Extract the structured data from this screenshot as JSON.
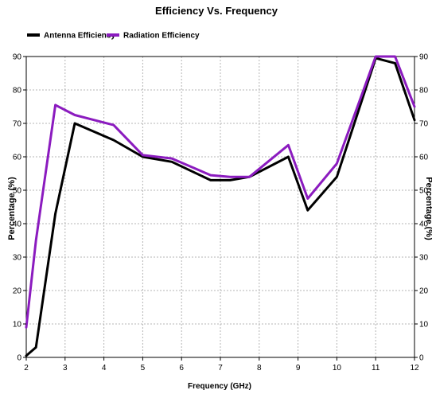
{
  "chart_data": {
    "type": "line",
    "title": "Efficiency Vs. Frequency",
    "xlabel": "Frequency (GHz)",
    "ylabel": "Percentage (%)",
    "ylabel_right": "Percentage (%)",
    "xlim": [
      2,
      12
    ],
    "ylim": [
      0,
      90
    ],
    "x_ticks": [
      "2",
      "3",
      "4",
      "5",
      "6",
      "7",
      "8",
      "9",
      "10",
      "11",
      "12"
    ],
    "y_ticks": [
      "0",
      "10",
      "20",
      "30",
      "40",
      "50",
      "60",
      "70",
      "80",
      "90"
    ],
    "grid": true,
    "legend_position": "top-left",
    "series": [
      {
        "name": "Antenna Efficiency",
        "color": "#000000",
        "x": [
          2.0,
          2.25,
          2.75,
          3.25,
          3.75,
          4.25,
          5.0,
          5.75,
          6.75,
          7.25,
          7.75,
          8.75,
          9.25,
          10.0,
          11.0,
          11.5,
          12.0
        ],
        "y": [
          0.5,
          3.0,
          43.0,
          70.0,
          67.5,
          65.0,
          60.0,
          58.5,
          53.0,
          53.0,
          54.0,
          60.0,
          44.0,
          54.0,
          89.5,
          88.0,
          71.0
        ]
      },
      {
        "name": "Radiation Efficiency",
        "color": "#8b1bbf",
        "x": [
          2.0,
          2.25,
          2.75,
          3.25,
          3.75,
          4.25,
          5.0,
          5.75,
          6.75,
          7.25,
          7.75,
          8.75,
          9.25,
          10.0,
          11.0,
          11.5,
          12.0
        ],
        "y": [
          9.0,
          35.0,
          75.5,
          72.5,
          71.0,
          69.5,
          60.5,
          59.5,
          54.5,
          54.0,
          54.0,
          63.5,
          47.5,
          58.0,
          90.0,
          90.0,
          75.0
        ]
      }
    ]
  }
}
